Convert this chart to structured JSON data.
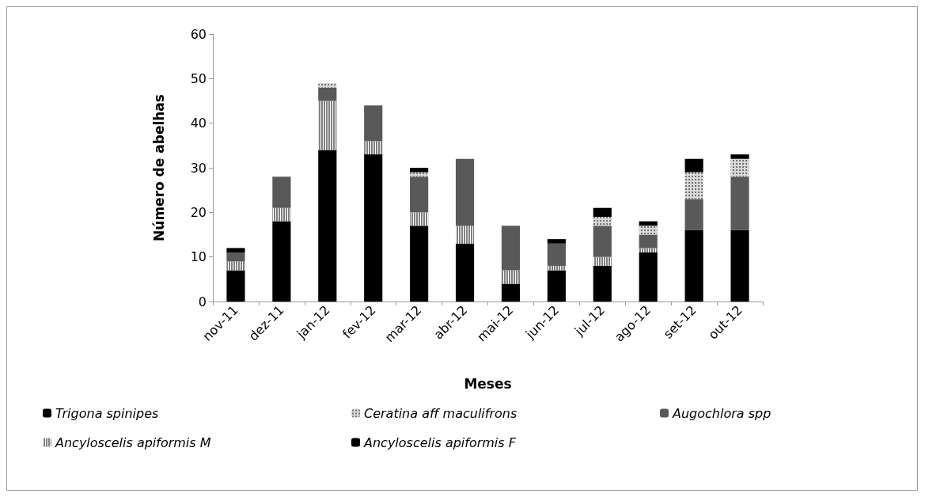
{
  "chart_data": {
    "type": "bar",
    "stacked": true,
    "xlabel": "Meses",
    "ylabel": "Número de abelhas",
    "categories": [
      "nov-11",
      "dez-11",
      "jan-12",
      "fev-12",
      "mar-12",
      "abr-12",
      "mai-12",
      "jun-12",
      "jul-12",
      "ago-12",
      "set-12",
      "out-12"
    ],
    "series": [
      {
        "name": "Ancyloscelis apiformis F",
        "color": "#000000",
        "values": [
          7,
          18,
          34,
          33,
          17,
          13,
          4,
          7,
          8,
          11,
          16,
          16
        ]
      },
      {
        "name": "Ancyloscelis apiformis M",
        "color": "#808080",
        "values": [
          2,
          3,
          11,
          3,
          3,
          4,
          3,
          1,
          2,
          1,
          0,
          0
        ]
      },
      {
        "name": "Augochlora spp",
        "color": "#595959",
        "values": [
          2,
          7,
          3,
          8,
          8,
          15,
          10,
          5,
          7,
          3,
          7,
          12
        ]
      },
      {
        "name": "Ceratina aff maculifrons",
        "color": "#d9d9d9",
        "values": [
          0,
          0,
          1,
          0,
          1,
          0,
          0,
          0,
          2,
          2,
          6,
          4
        ]
      },
      {
        "name": "Trigona spinipes",
        "color": "#000000",
        "values": [
          1,
          0,
          0,
          0,
          1,
          0,
          0,
          1,
          2,
          1,
          3,
          1
        ]
      }
    ],
    "ylim": [
      0,
      60
    ],
    "yticks": [
      0,
      10,
      20,
      30,
      40,
      50,
      60
    ],
    "grid": false,
    "legend": "bottom"
  }
}
